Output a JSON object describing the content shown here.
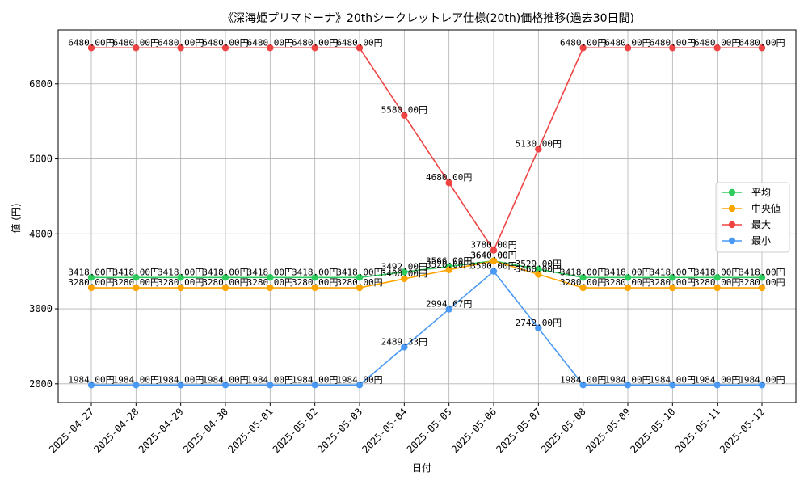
{
  "chart_data": {
    "type": "line",
    "title": "《深海姫プリマドーナ》20thシークレットレア仕様(20th)価格推移(過去30日間)",
    "xlabel": "日付",
    "ylabel": "値 (円)",
    "ylim": [
      1750,
      6720
    ],
    "yticks": [
      2000,
      3000,
      4000,
      5000,
      6000
    ],
    "grid": true,
    "legend_position": "right",
    "categories": [
      "2025-04-27",
      "2025-04-28",
      "2025-04-29",
      "2025-04-30",
      "2025-05-01",
      "2025-05-02",
      "2025-05-03",
      "2025-05-04",
      "2025-05-05",
      "2025-05-06",
      "2025-05-07",
      "2025-05-08",
      "2025-05-09",
      "2025-05-10",
      "2025-05-11",
      "2025-05-12"
    ],
    "series": [
      {
        "name": "平均",
        "color": "#2ecc5e",
        "values": [
          3418,
          3418,
          3418,
          3418,
          3418,
          3418,
          3418,
          3492,
          3566,
          3640,
          3529,
          3418,
          3418,
          3418,
          3418,
          3418
        ],
        "labels": [
          "3418.00円",
          "3418.00円",
          "3418.00円",
          "3418.00円",
          "3418.00円",
          "3418.00円",
          "3418.00円",
          "3492.00円",
          "3566.00円",
          "3640.00円",
          "3529.00円",
          "3418.00円",
          "3418.00円",
          "3418.00円",
          "3418.00円",
          "3418.00円"
        ]
      },
      {
        "name": "中央値",
        "color": "#ffa500",
        "values": [
          3280,
          3280,
          3280,
          3280,
          3280,
          3280,
          3280,
          3400,
          3520,
          3640,
          3460,
          3280,
          3280,
          3280,
          3280,
          3280
        ],
        "labels": [
          "3280.00円",
          "3280.00円",
          "3280.00円",
          "3280.00円",
          "3280.00円",
          "3280.00円",
          "3280.00円",
          "3400.00円",
          "3520.00円",
          "3640.00円",
          "3460.00円",
          "3280.00円",
          "3280.00円",
          "3280.00円",
          "3280.00円",
          "3280.00円"
        ]
      },
      {
        "name": "最大",
        "color": "#ef4444",
        "values": [
          6480,
          6480,
          6480,
          6480,
          6480,
          6480,
          6480,
          5580,
          4680,
          3780,
          5130,
          6480,
          6480,
          6480,
          6480,
          6480
        ],
        "labels": [
          "6480.00円",
          "6480.00円",
          "6480.00円",
          "6480.00円",
          "6480.00円",
          "6480.00円",
          "6480.00円",
          "5580.00円",
          "4680.00円",
          "3780.00円",
          "5130.00円",
          "6480.00円",
          "6480.00円",
          "6480.00円",
          "6480.00円",
          "6480.00円"
        ]
      },
      {
        "name": "最小",
        "color": "#4a9af5",
        "values": [
          1984,
          1984,
          1984,
          1984,
          1984,
          1984,
          1984,
          2489.33,
          2994.67,
          3500,
          2742,
          1984,
          1984,
          1984,
          1984,
          1984
        ],
        "labels": [
          "1984.00円",
          "1984.00円",
          "1984.00円",
          "1984.00円",
          "1984.00円",
          "1984.00円",
          "1984.00円",
          "2489.33円",
          "2994.67円",
          "3500.00円",
          "2742.00円",
          "1984.00円",
          "1984.00円",
          "1984.00円",
          "1984.00円",
          "1984.00円"
        ]
      }
    ]
  }
}
